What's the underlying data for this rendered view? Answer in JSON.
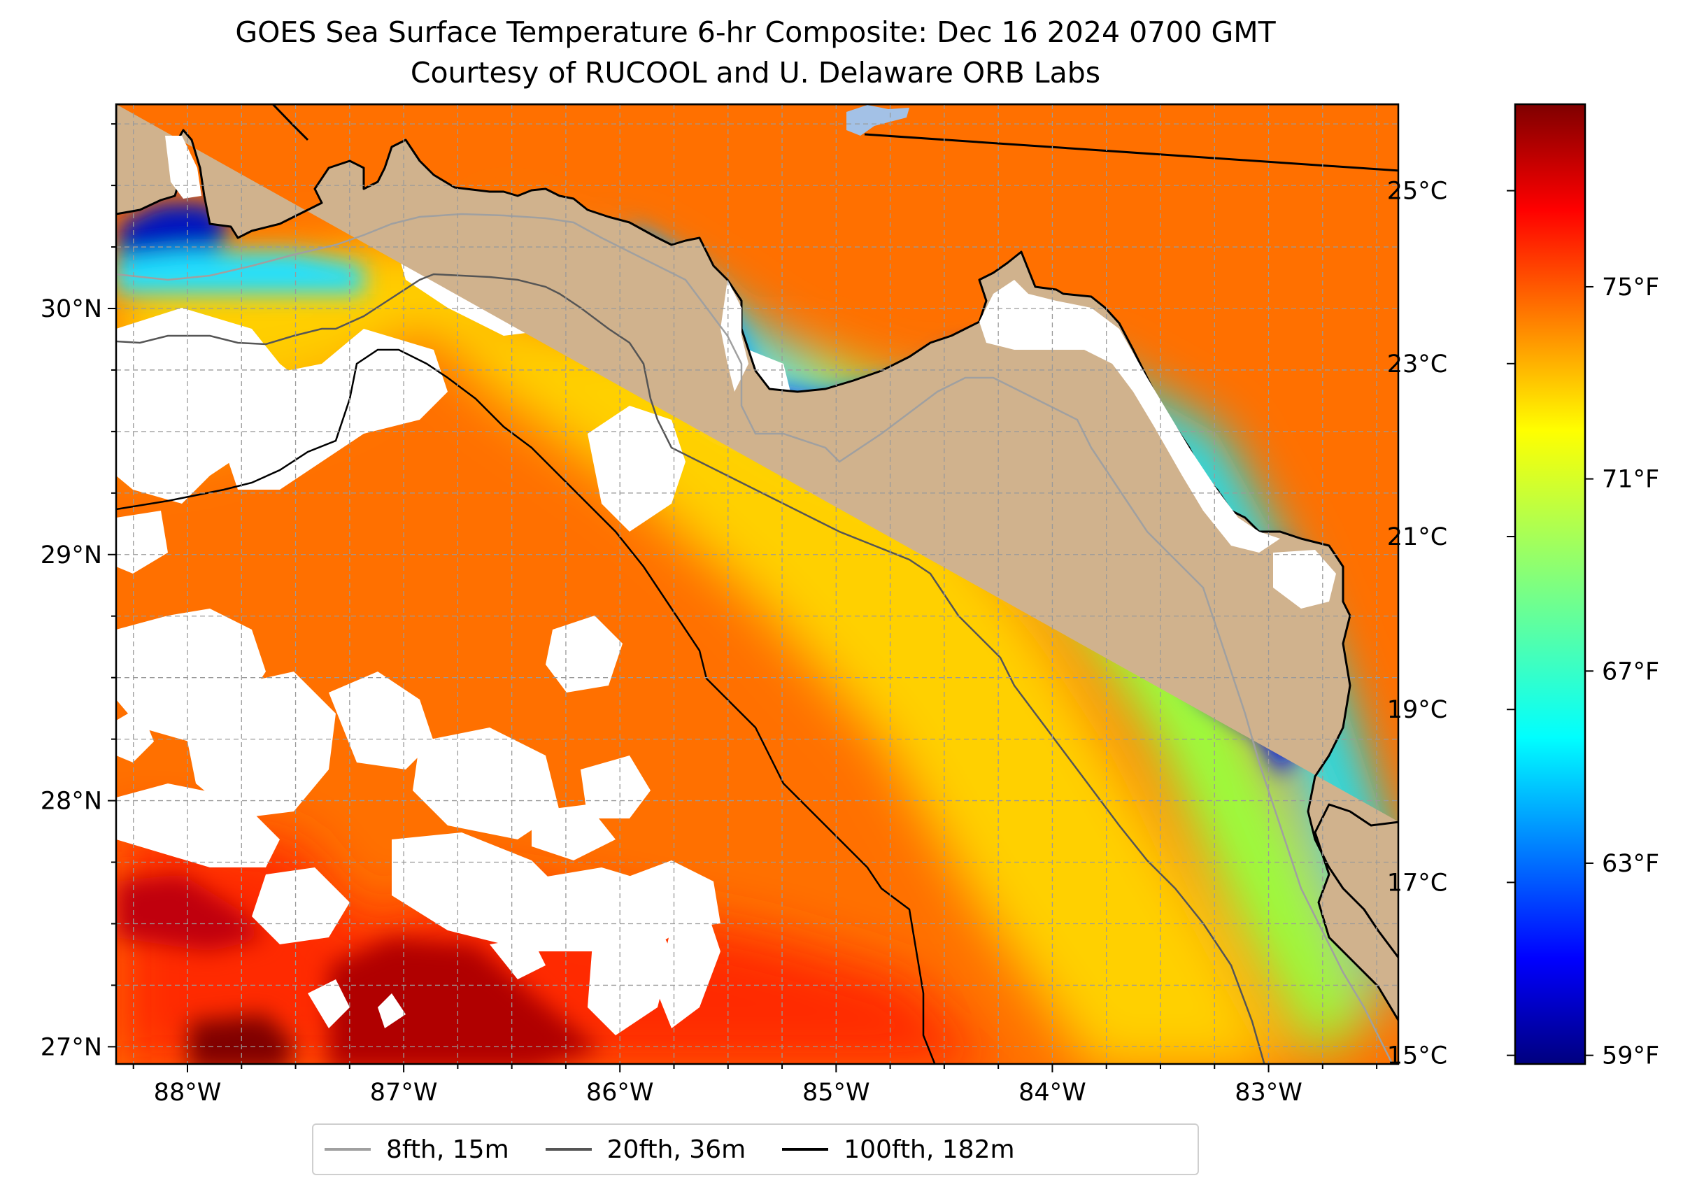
{
  "title_line1": "GOES Sea Surface Temperature 6-hr Composite: Dec 16 2024 0700 GMT",
  "title_line2": "Courtesy of RUCOOL and U. Delaware ORB Labs",
  "map": {
    "lon_range": [
      -88.33,
      -82.4
    ],
    "lat_range": [
      26.93,
      30.83
    ],
    "lon_ticks": [
      "88°W",
      "87°W",
      "86°W",
      "85°W",
      "84°W",
      "83°W"
    ],
    "lon_tick_values": [
      -88,
      -87,
      -86,
      -85,
      -84,
      -83
    ],
    "lat_ticks": [
      "27°N",
      "28°N",
      "29°N",
      "30°N"
    ],
    "lat_tick_values": [
      27,
      28,
      29,
      30
    ],
    "gridlines": "dashed grey",
    "land_color": "#d0b28d",
    "no_data_color": "#ffffff"
  },
  "colorbar": {
    "colormap": "jet",
    "celsius_range": [
      14.9,
      26.0
    ],
    "celsius_labels": [
      "15°C",
      "17°C",
      "19°C",
      "21°C",
      "23°C",
      "25°C"
    ],
    "celsius_values": [
      15,
      17,
      19,
      21,
      23,
      25
    ],
    "fahrenheit_labels": [
      "59°F",
      "63°F",
      "67°F",
      "71°F",
      "75°F"
    ],
    "fahrenheit_values": [
      59,
      63,
      67,
      71,
      75
    ]
  },
  "legend": [
    {
      "label": "8fth, 15m",
      "color": "#a0a0a0"
    },
    {
      "label": "20fth, 36m",
      "color": "#555555"
    },
    {
      "label": "100fth, 182m",
      "color": "#000000"
    }
  ]
}
